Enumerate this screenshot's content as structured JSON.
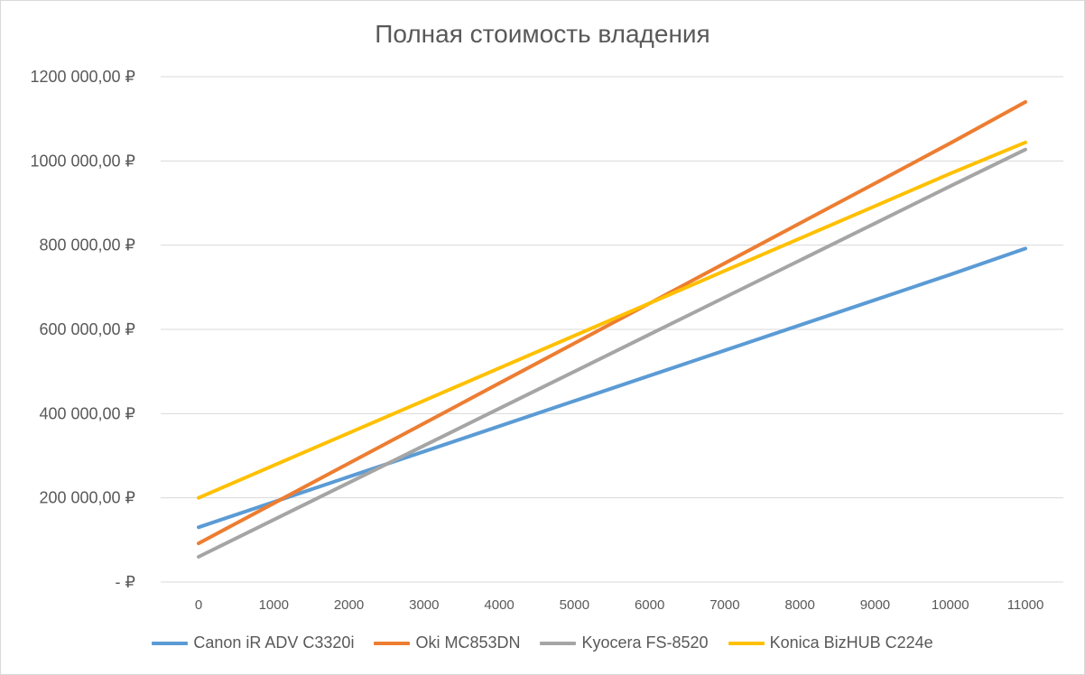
{
  "chart_data": {
    "type": "line",
    "title": "Полная стоимость владения",
    "xlabel": "",
    "ylabel": "",
    "x": [
      0,
      1000,
      2000,
      3000,
      4000,
      5000,
      6000,
      7000,
      8000,
      9000,
      10000,
      11000
    ],
    "x_tick_labels": [
      "0",
      "1000",
      "2000",
      "3000",
      "4000",
      "5000",
      "6000",
      "7000",
      "8000",
      "9000",
      "10000",
      "11000"
    ],
    "ylim": [
      0,
      1200000
    ],
    "y_ticks": [
      0,
      200000,
      400000,
      600000,
      800000,
      1000000,
      1200000
    ],
    "y_tick_labels": [
      "-   ₽",
      "200 000,00 ₽",
      "400 000,00 ₽",
      "600 000,00 ₽",
      "800 000,00 ₽",
      "1000 000,00 ₽",
      "1200 000,00 ₽"
    ],
    "grid": true,
    "legend_position": "bottom",
    "series": [
      {
        "name": "Canon iR ADV C3320i",
        "color": "#5b9bd5",
        "values": [
          130000,
          190000,
          250000,
          310000,
          370000,
          430000,
          490000,
          550000,
          610000,
          670000,
          730000,
          792000
        ]
      },
      {
        "name": "Oki MC853DN",
        "color": "#ed7d31",
        "values": [
          92000,
          187000,
          282000,
          377000,
          472000,
          567000,
          662000,
          757000,
          852000,
          947000,
          1042000,
          1140000
        ]
      },
      {
        "name": "Kyocera FS-8520",
        "color": "#a5a5a5",
        "values": [
          60000,
          148000,
          236000,
          324000,
          412000,
          500000,
          588000,
          676000,
          764000,
          852000,
          940000,
          1027000
        ]
      },
      {
        "name": "Konica BizHUB C224e",
        "color": "#ffc000",
        "values": [
          200000,
          277000,
          354000,
          431000,
          508000,
          585000,
          662000,
          739000,
          816000,
          893000,
          970000,
          1044000
        ]
      }
    ]
  }
}
